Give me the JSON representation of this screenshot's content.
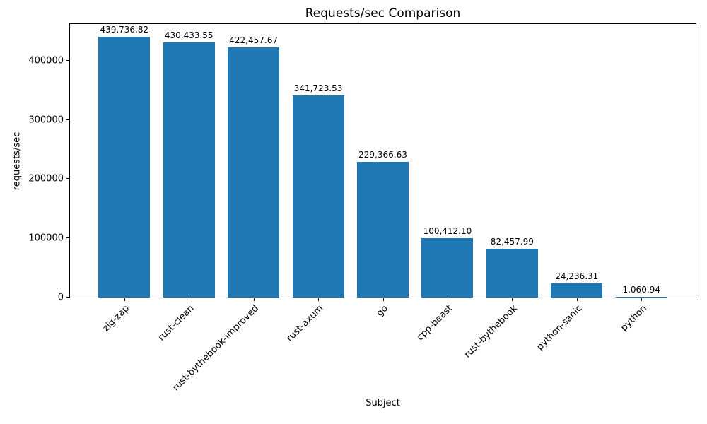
{
  "chart_data": {
    "type": "bar",
    "title": "Requests/sec Comparison",
    "xlabel": "Subject",
    "ylabel": "requests/sec",
    "categories": [
      "zig-zap",
      "rust-clean",
      "rust-bythebook-improved",
      "rust-axum",
      "go",
      "cpp-beast",
      "rust-bythebook",
      "python-sanic",
      "python"
    ],
    "values": [
      439736.82,
      430433.55,
      422457.67,
      341723.53,
      229366.63,
      100412.1,
      82457.99,
      24236.31,
      1060.94
    ],
    "bar_labels": [
      "439,736.82",
      "430,433.55",
      "422,457.67",
      "341,723.53",
      "229,366.63",
      "100,412.10",
      "82,457.99",
      "24,236.31",
      "1,060.94"
    ],
    "yticks": [
      0,
      100000,
      200000,
      300000,
      400000
    ],
    "ytick_labels": [
      "0",
      "100000",
      "200000",
      "300000",
      "400000"
    ],
    "ylim": [
      0,
      461724
    ],
    "xtick_rotation_deg": 45,
    "grid": false,
    "legend": "none",
    "bar_color": "#1f77b4",
    "background_color": "#ffffff",
    "text_color": "#000000"
  }
}
